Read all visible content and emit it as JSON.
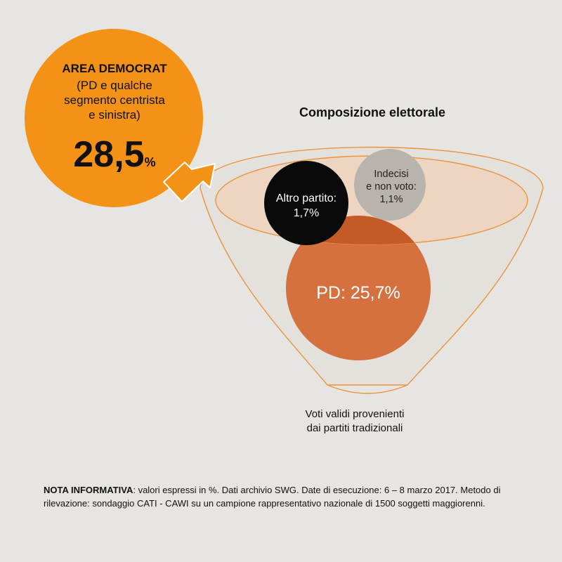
{
  "colors": {
    "background": "#e7e5e2",
    "area_circle": "#f39216",
    "funnel_outline": "#e8953e",
    "funnel_top_fill": "#efd2bd",
    "pd_circle": "#d4713f",
    "pd_overlap": "#c45a26",
    "altro_circle": "#0a0a0a",
    "indecisi_circle": "#b9b3ae"
  },
  "area": {
    "title": "AREA DEMOCRAT",
    "description_lines": [
      "(PD e qualche",
      "segmento centrista",
      "e sinistra)"
    ],
    "value": "28,5",
    "unit": "%"
  },
  "composition": {
    "title": "Composizione elettorale",
    "altro_partito": {
      "label_lines": [
        "Altro partito:",
        "1,7%"
      ],
      "value": 1.7
    },
    "indecisi": {
      "label_lines": [
        "Indecisi",
        "e non voto:",
        "1,1%"
      ],
      "value": 1.1
    },
    "pd": {
      "label": "PD: 25,7%",
      "value": 25.7
    },
    "caption_lines": [
      "Voti validi provenienti",
      "dai partiti tradizionali"
    ]
  },
  "note": {
    "label": "NOTA INFORMATIVA",
    "text": ": valori espressi in %. Dati archivio SWG. Date di esecuzione: 6 – 8 marzo 2017. Metodo di rilevazione: sondaggio CATI - CAWI su un campione rappresentativo nazionale di 1500 soggetti maggiorenni."
  }
}
